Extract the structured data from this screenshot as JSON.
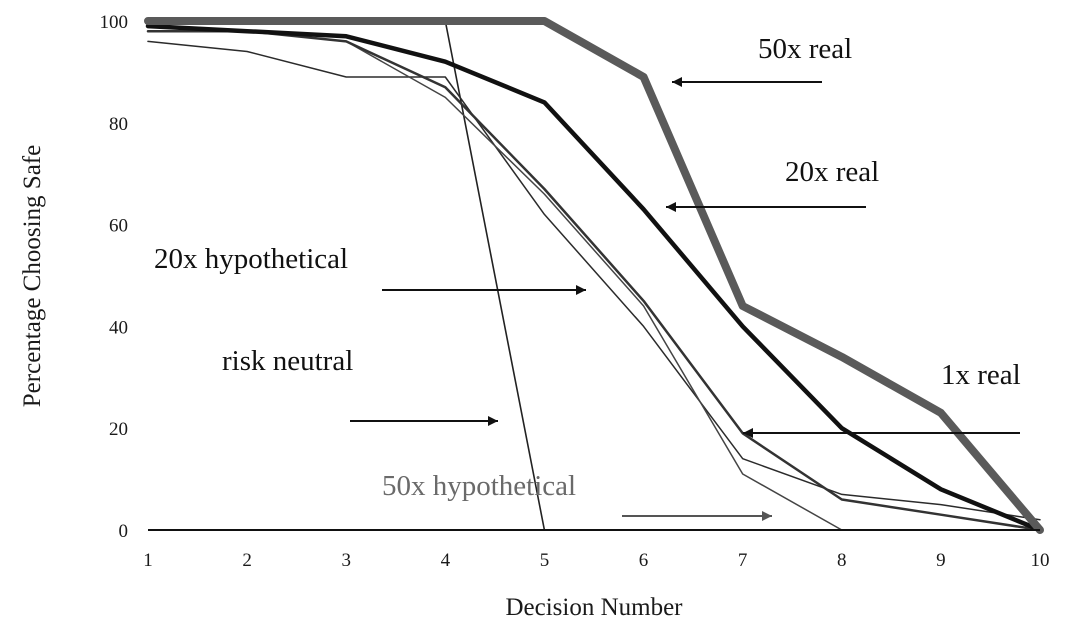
{
  "chart_data": {
    "type": "line",
    "title": "",
    "xlabel": "Decision Number",
    "ylabel": "Percentage Choosing Safe",
    "x": [
      1,
      2,
      3,
      4,
      5,
      6,
      7,
      8,
      9,
      10
    ],
    "xlim": [
      1,
      10
    ],
    "ylim": [
      0,
      100
    ],
    "xticks": [
      "1",
      "2",
      "3",
      "4",
      "5",
      "6",
      "7",
      "8",
      "9",
      "10"
    ],
    "yticks": [
      "0",
      "20",
      "40",
      "60",
      "80",
      "100"
    ],
    "grid": false,
    "legend": "none",
    "series": [
      {
        "name": "50x real",
        "color": "#5a5a5a",
        "values": [
          100,
          100,
          100,
          100,
          100,
          89,
          44,
          34,
          23,
          0
        ]
      },
      {
        "name": "20x real",
        "color": "#111111",
        "values": [
          99,
          98,
          97,
          92,
          84,
          63,
          40,
          20,
          8,
          0
        ]
      },
      {
        "name": "20x hypothetical",
        "color": "#333333",
        "values": [
          98,
          98,
          96,
          87,
          67,
          45,
          19,
          6,
          3,
          0
        ]
      },
      {
        "name": "50x hypothetical",
        "color": "#444444",
        "values": [
          98,
          98,
          96,
          85,
          66,
          44,
          11,
          0,
          null,
          null
        ]
      },
      {
        "name": "1x real",
        "color": "#2b2b2b",
        "values": [
          96,
          94,
          89,
          89,
          62,
          40,
          14,
          7,
          5,
          2
        ]
      },
      {
        "name": "risk neutral",
        "color": "#222222",
        "values": [
          100,
          100,
          100,
          100,
          0,
          null,
          null,
          null,
          null,
          null
        ]
      }
    ],
    "annotations": [
      {
        "text": "50x real",
        "target": "50x real"
      },
      {
        "text": "20x real",
        "target": "20x real"
      },
      {
        "text": "20x hypothetical",
        "target": "20x hypothetical"
      },
      {
        "text": "risk neutral",
        "target": "risk neutral"
      },
      {
        "text": "1x real",
        "target": "1x real"
      },
      {
        "text": "50x hypothetical",
        "target": "50x hypothetical"
      }
    ]
  }
}
